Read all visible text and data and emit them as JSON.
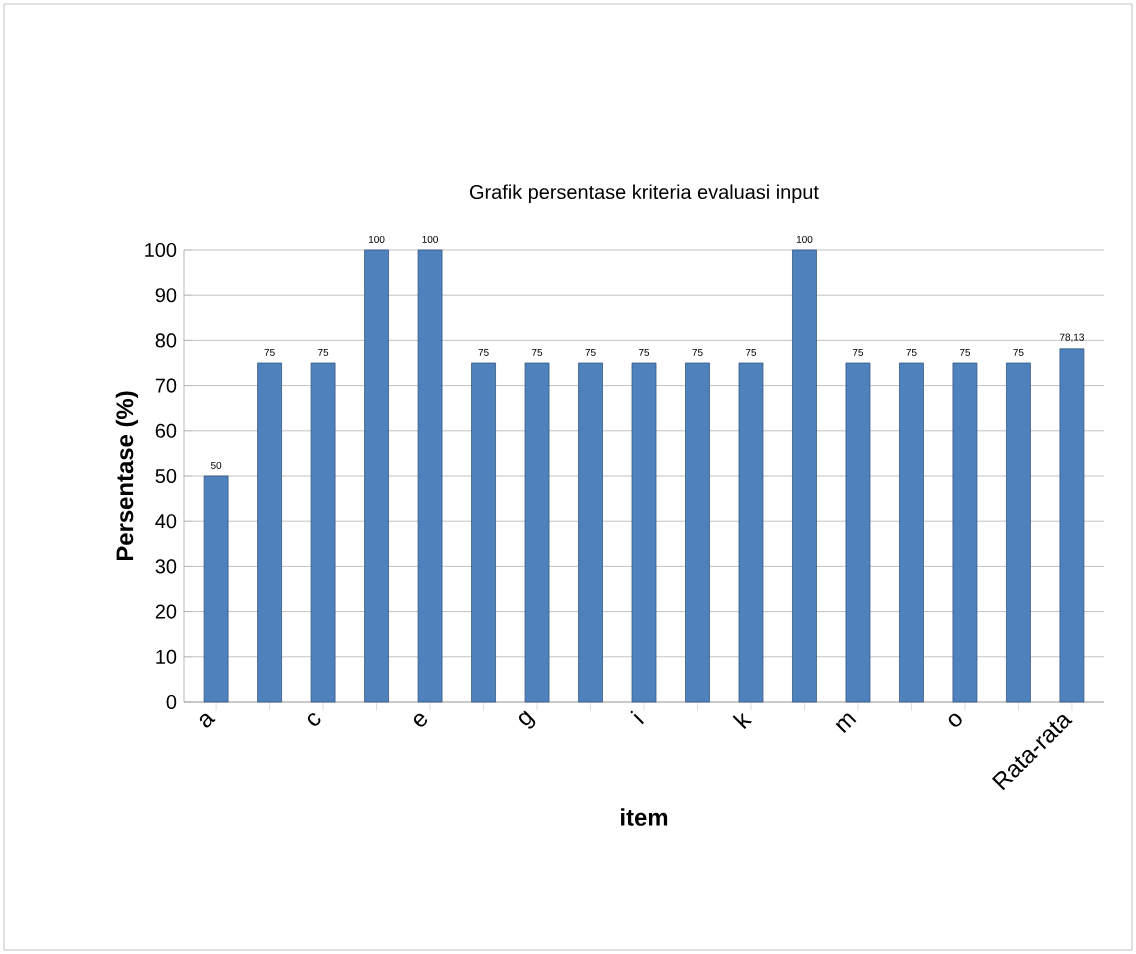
{
  "chart_data": {
    "type": "bar",
    "title": "Grafik persentase kriteria evaluasi  input",
    "xlabel": "item",
    "ylabel": "Persentase (%)",
    "categories": [
      "a",
      null,
      "c",
      null,
      "e",
      null,
      "g",
      null,
      "i",
      null,
      "k",
      null,
      "m",
      null,
      "o",
      null,
      "Rata-rata"
    ],
    "values": [
      50,
      75,
      75,
      100,
      100,
      75,
      75,
      75,
      75,
      75,
      75,
      100,
      75,
      75,
      75,
      75,
      78.13
    ],
    "value_labels": [
      "50",
      "75",
      "75",
      "100",
      "100",
      "75",
      "75",
      "75",
      "75",
      "75",
      "75",
      "100",
      "75",
      "75",
      "75",
      "75",
      "78,13"
    ],
    "color": "#4f81bd",
    "ylim": [
      0,
      100
    ],
    "yticks": [
      0,
      10,
      20,
      30,
      40,
      50,
      60,
      70,
      80,
      90,
      100
    ],
    "grid": "y"
  }
}
